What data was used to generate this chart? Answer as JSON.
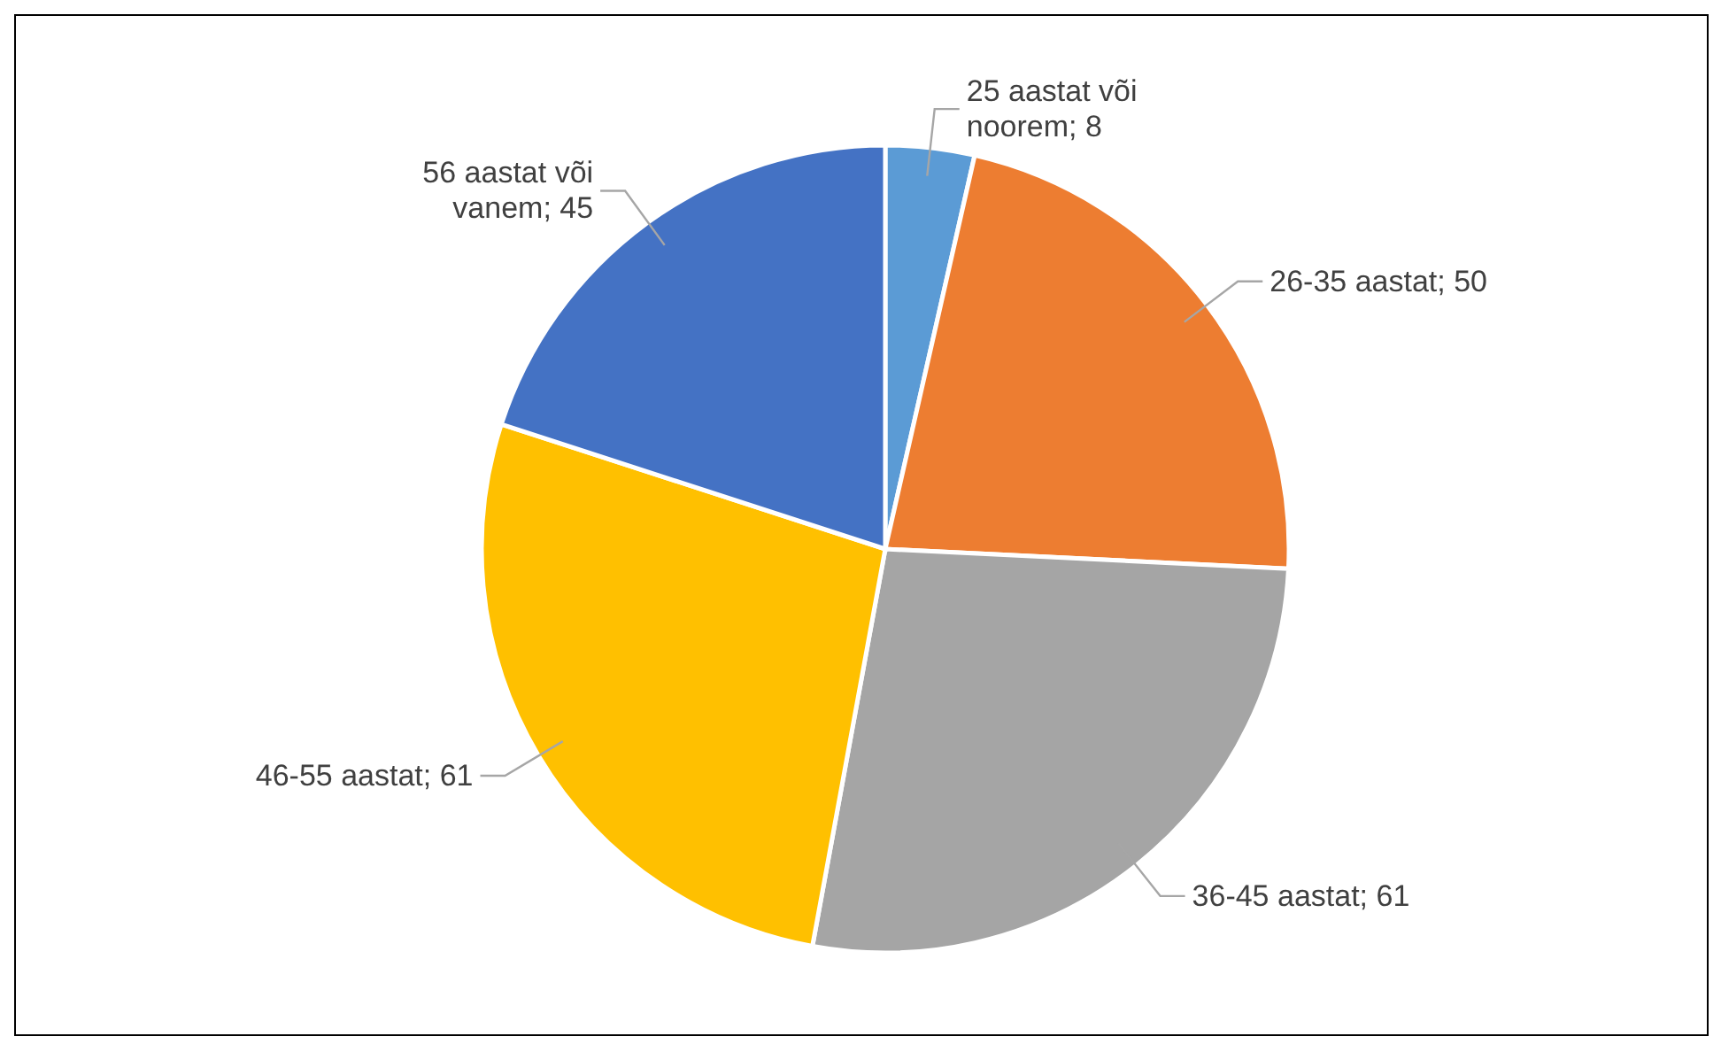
{
  "chart_data": {
    "type": "pie",
    "categories": [
      "25 aastat või noorem",
      "26-35 aastat",
      "36-45 aastat",
      "46-55 aastat",
      "56 aastat või vanem"
    ],
    "values": [
      8,
      50,
      61,
      61,
      45
    ],
    "colors": [
      "#5b9bd5",
      "#ed7d31",
      "#a5a5a5",
      "#ffc000",
      "#4472c4"
    ],
    "value_labels": [
      "; 8",
      "; 50",
      "; 61",
      "; 61",
      "; 45"
    ],
    "legend": false
  }
}
